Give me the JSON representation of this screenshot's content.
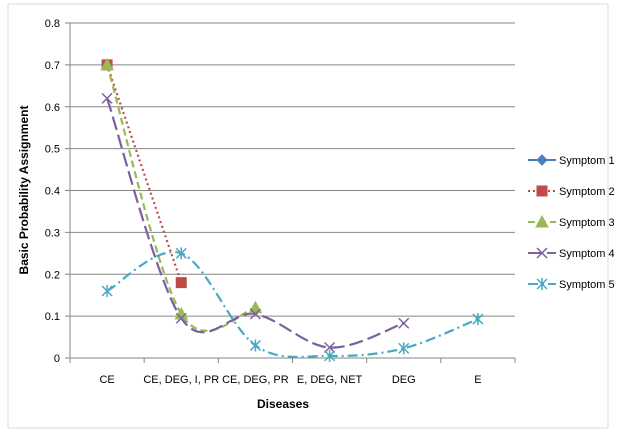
{
  "chart_data": {
    "type": "line",
    "xlabel": "Diseases",
    "ylabel": "Basic Probability Assignment",
    "categories": [
      "CE",
      "CE, DEG, I, PR",
      "CE, DEG, PR",
      "E, DEG, NET",
      "DEG",
      "E"
    ],
    "ylim": [
      0,
      0.8
    ],
    "yticks": [
      "0",
      "0.1",
      "0.2",
      "0.3",
      "0.4",
      "0.5",
      "0.6",
      "0.7",
      "0.8"
    ],
    "grid": true,
    "legend_position": "right",
    "series": [
      {
        "name": "Symptom 1",
        "values": [
          0.7,
          null,
          null,
          null,
          null,
          null
        ],
        "color": "#4a7ebb",
        "marker": "diamond",
        "dash": "solid"
      },
      {
        "name": "Symptom 2",
        "values": [
          0.7,
          0.18,
          null,
          null,
          null,
          null
        ],
        "color": "#be4b48",
        "marker": "square",
        "dash": "dot"
      },
      {
        "name": "Symptom 3",
        "values": [
          0.7,
          0.105,
          0.12,
          null,
          null,
          null
        ],
        "color": "#98b954",
        "marker": "triangle",
        "dash": "dash"
      },
      {
        "name": "Symptom 4",
        "values": [
          0.62,
          0.095,
          0.105,
          0.025,
          0.083,
          null
        ],
        "color": "#7d60a0",
        "marker": "x",
        "dash": "longdash"
      },
      {
        "name": "Symptom 5",
        "values": [
          0.16,
          0.25,
          0.03,
          0.005,
          0.023,
          0.093
        ],
        "color": "#46aac5",
        "marker": "star",
        "dash": "dashdot"
      }
    ]
  }
}
